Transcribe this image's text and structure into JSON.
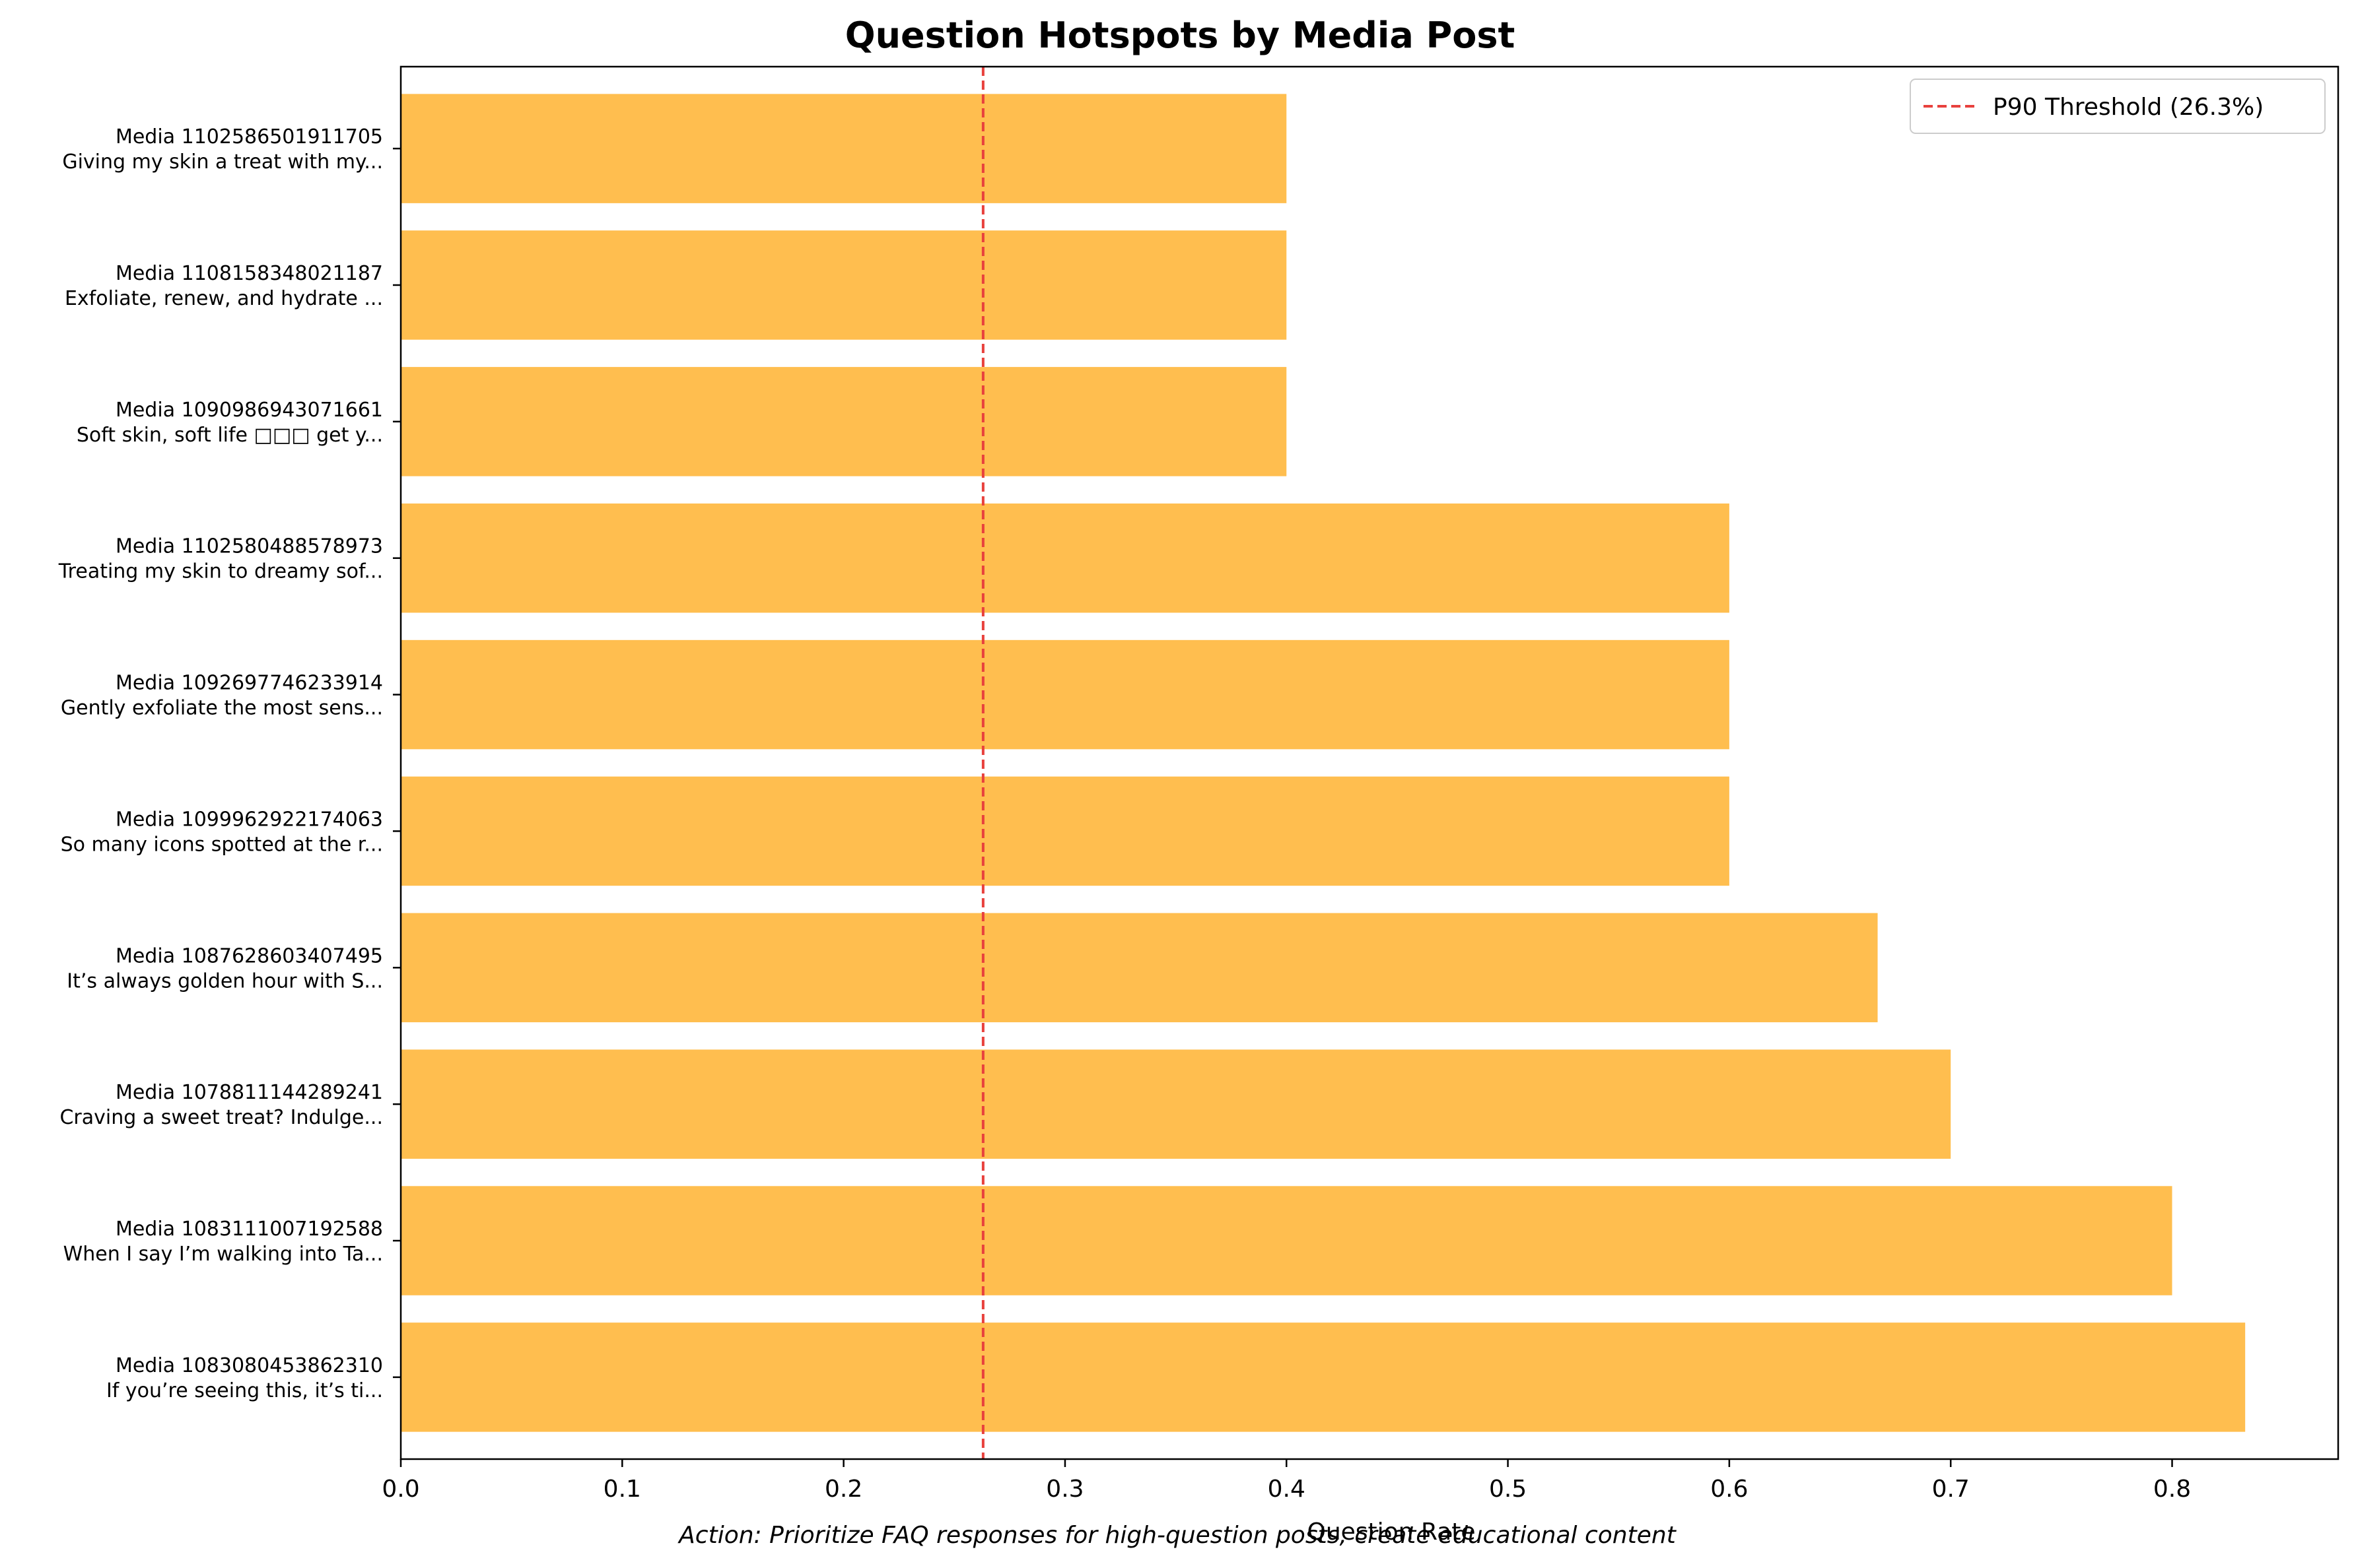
{
  "chart_data": {
    "type": "bar",
    "orientation": "horizontal",
    "title": "Question Hotspots by Media Post",
    "xlabel": "Question Rate",
    "ylabel": "",
    "xlim": [
      0,
      0.875
    ],
    "x_ticks": [
      "0.0",
      "0.1",
      "0.2",
      "0.3",
      "0.4",
      "0.5",
      "0.6",
      "0.7",
      "0.8"
    ],
    "categories": [
      {
        "line1": "Media 1102586501911705",
        "line2": "Giving my skin a treat with my..."
      },
      {
        "line1": "Media 1108158348021187",
        "line2": "Exfoliate, renew, and hydrate ..."
      },
      {
        "line1": "Media 1090986943071661",
        "line2": "Soft skin, soft life □□□ get y..."
      },
      {
        "line1": "Media 1102580488578973",
        "line2": "Treating my skin to dreamy sof..."
      },
      {
        "line1": "Media 1092697746233914",
        "line2": "Gently exfoliate the most sens..."
      },
      {
        "line1": "Media 1099962922174063",
        "line2": "So many icons spotted at the r..."
      },
      {
        "line1": "Media 1087628603407495",
        "line2": "It’s always golden hour with S..."
      },
      {
        "line1": "Media 1078811144289241",
        "line2": "Craving a sweet treat? Indulge..."
      },
      {
        "line1": "Media 1083111007192588",
        "line2": "When I say I’m walking into Ta..."
      },
      {
        "line1": "Media 1083080453862310",
        "line2": "If you’re seeing this, it’s ti..."
      }
    ],
    "values": [
      0.4,
      0.4,
      0.4,
      0.6,
      0.6,
      0.6,
      0.667,
      0.7,
      0.8,
      0.833
    ],
    "bar_color": "#FFBE4F",
    "threshold": {
      "value": 0.263,
      "label": "P90 Threshold (26.3%)",
      "color": "#E8413D"
    },
    "legend_position": "upper right",
    "grid": false,
    "footnote": "Action: Prioritize FAQ responses for high-question posts, create educational content"
  }
}
